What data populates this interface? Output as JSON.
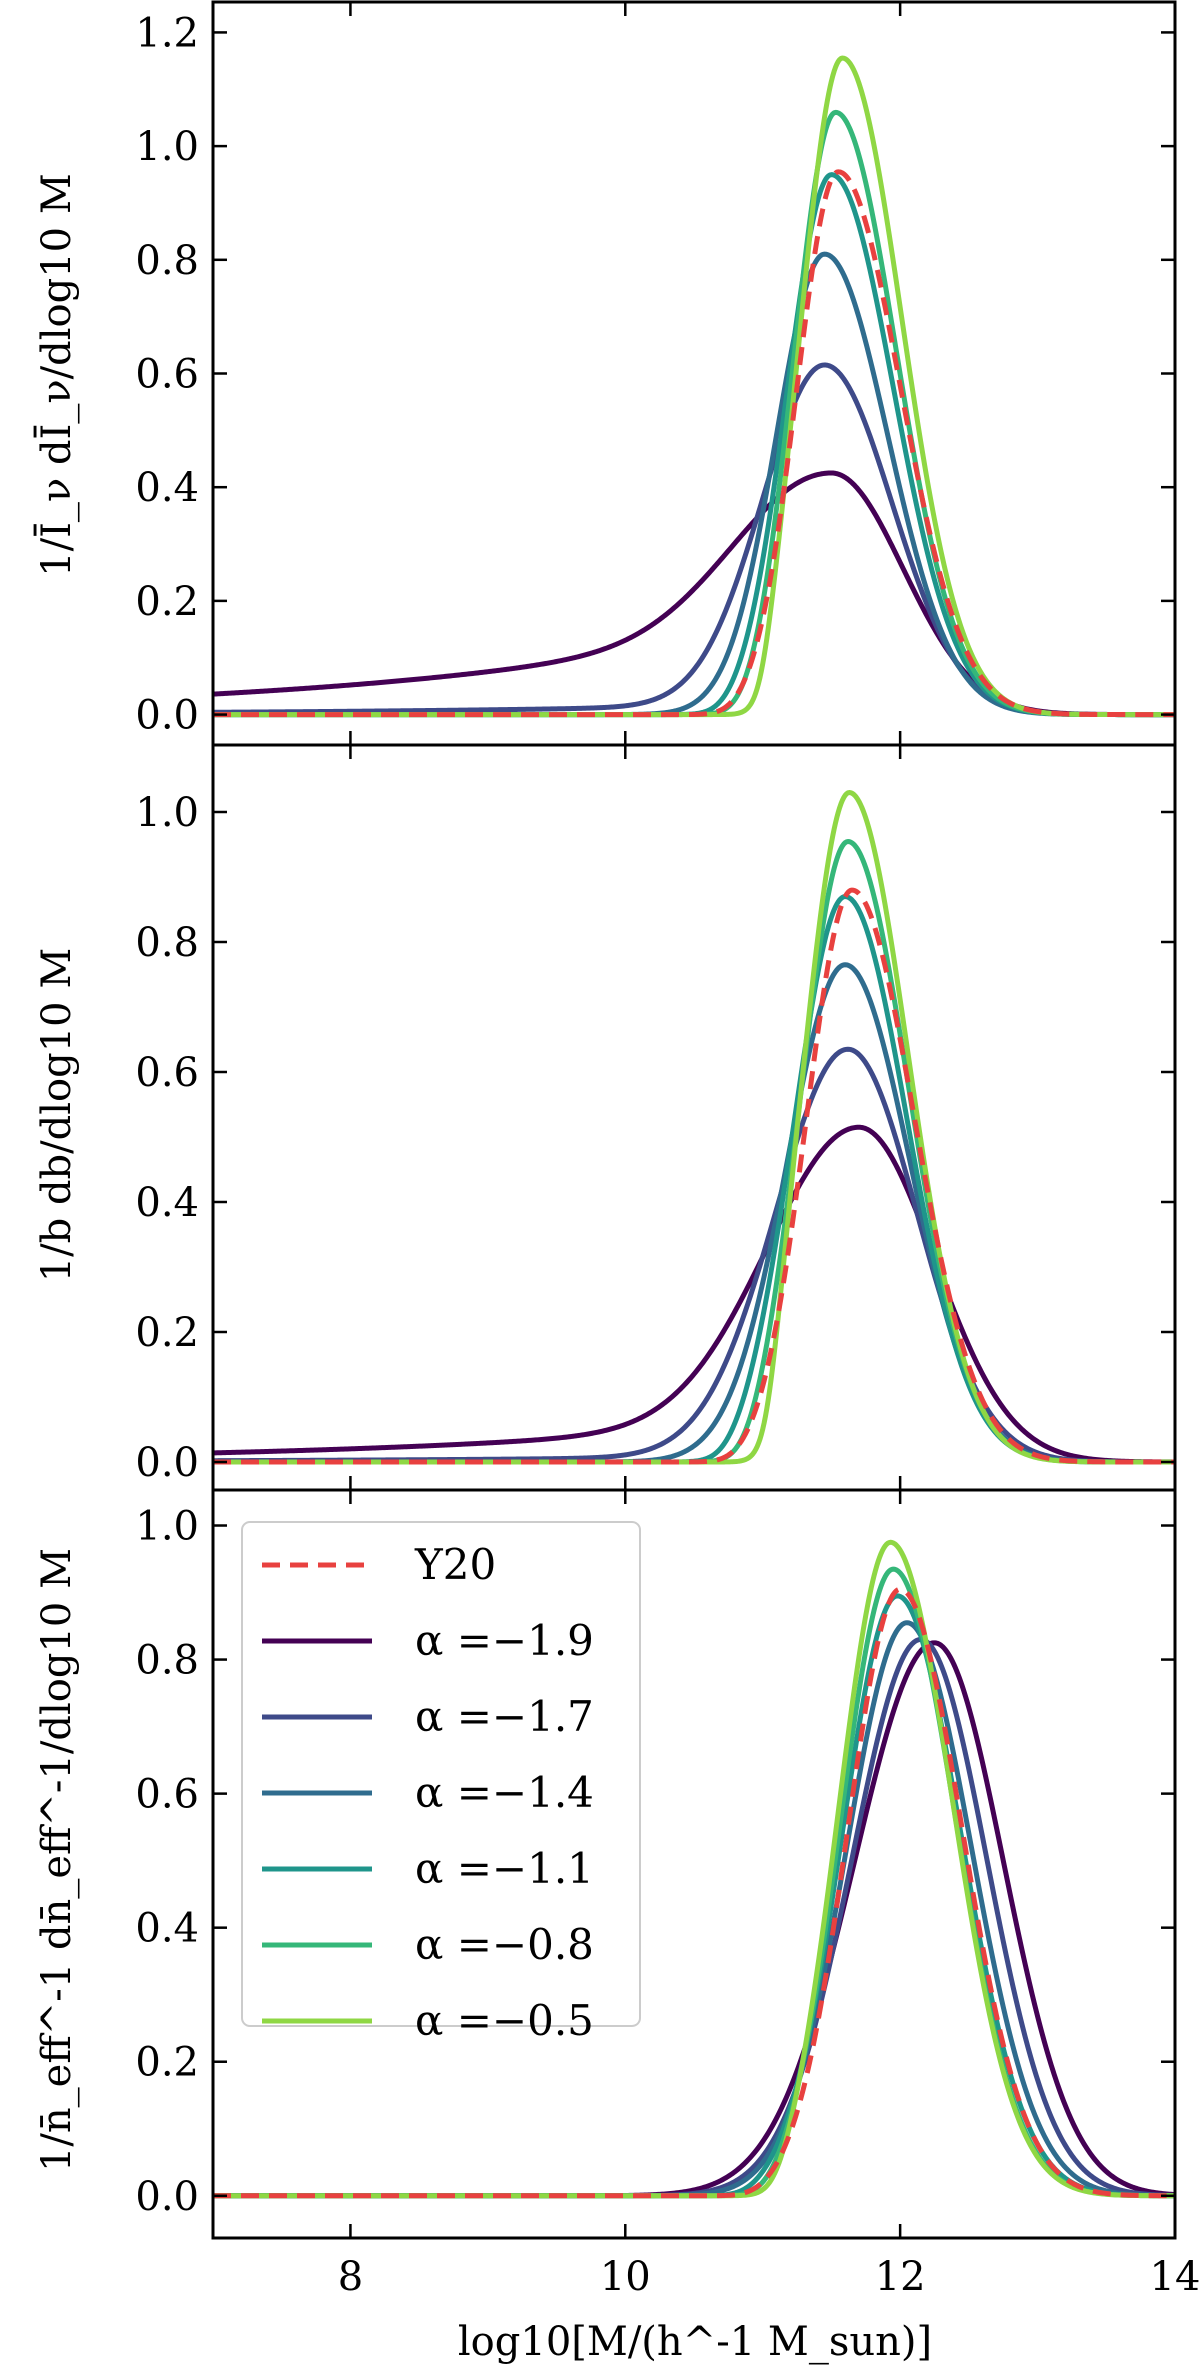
{
  "chart_data": {
    "type": "line",
    "figure": "three stacked panels sharing the x axis",
    "xlabel": "log10[M/(h^-1 M_sun)]",
    "xlim": [
      7,
      14
    ],
    "xticks": [
      "8",
      "10",
      "12",
      "14"
    ],
    "legend": {
      "placement": "upper-left of bottom panel",
      "entries": [
        "Y20",
        "α =−1.9",
        "α =−1.7",
        "α =−1.4",
        "α =−1.1",
        "α =−0.8",
        "α =−0.5"
      ]
    },
    "series_styles": [
      {
        "name": "Y20",
        "color": "#e8413f",
        "dash": true
      },
      {
        "name": "α =−1.9",
        "color": "#440154",
        "dash": false
      },
      {
        "name": "α =−1.7",
        "color": "#3e4a89",
        "dash": false
      },
      {
        "name": "α =−1.4",
        "color": "#2f6c8e",
        "dash": false
      },
      {
        "name": "α =−1.1",
        "color": "#1f958b",
        "dash": false
      },
      {
        "name": "α =−0.8",
        "color": "#35b779",
        "dash": false
      },
      {
        "name": "α =−0.5",
        "color": "#8fd744",
        "dash": false
      }
    ],
    "panels": [
      {
        "ylabel": "1/Ī_ν dĪ_ν/dlog10 M",
        "ylim": [
          -0.05,
          1.25
        ],
        "yticks": [
          "0.0",
          "0.2",
          "0.4",
          "0.6",
          "0.8",
          "1.0",
          "1.2"
        ],
        "curves": [
          {
            "name": "Y20",
            "peak": 0.955,
            "mu": 11.55,
            "sl": 0.3,
            "sr": 0.45,
            "tail": 0.0,
            "cut": 10.7,
            "cutw": 0.1
          },
          {
            "name": "α =−1.9",
            "peak": 0.425,
            "mu": 11.5,
            "sl": 0.65,
            "sr": 0.52,
            "tail": 0.036,
            "cut": 6.0,
            "cutw": 0.1
          },
          {
            "name": "α =−1.7",
            "peak": 0.615,
            "mu": 11.45,
            "sl": 0.45,
            "sr": 0.49,
            "tail": 0.004,
            "cut": 6.0,
            "cutw": 0.1
          },
          {
            "name": "α =−1.4",
            "peak": 0.81,
            "mu": 11.45,
            "sl": 0.35,
            "sr": 0.46,
            "tail": 0.0,
            "cut": 6.0,
            "cutw": 0.1
          },
          {
            "name": "α =−1.1",
            "peak": 0.95,
            "mu": 11.5,
            "sl": 0.32,
            "sr": 0.45,
            "tail": 0.0,
            "cut": 10.65,
            "cutw": 0.1
          },
          {
            "name": "α =−0.8",
            "peak": 1.06,
            "mu": 11.53,
            "sl": 0.3,
            "sr": 0.44,
            "tail": 0.0,
            "cut": 10.8,
            "cutw": 0.1
          },
          {
            "name": "α =−0.5",
            "peak": 1.155,
            "mu": 11.58,
            "sl": 0.3,
            "sr": 0.43,
            "tail": 0.0,
            "cut": 11.0,
            "cutw": 0.06
          }
        ]
      },
      {
        "ylabel": "1/b db/dlog10 M",
        "ylim": [
          -0.04,
          1.1
        ],
        "yticks": [
          "0.0",
          "0.2",
          "0.4",
          "0.6",
          "0.8",
          "1.0"
        ],
        "curves": [
          {
            "name": "Y20",
            "peak": 0.88,
            "mu": 11.65,
            "sl": 0.33,
            "sr": 0.45,
            "tail": 0.0,
            "cut": 10.75,
            "cutw": 0.1
          },
          {
            "name": "α =−1.9",
            "peak": 0.515,
            "mu": 11.7,
            "sl": 0.65,
            "sr": 0.55,
            "tail": 0.014,
            "cut": 6.0,
            "cutw": 0.1
          },
          {
            "name": "α =−1.7",
            "peak": 0.635,
            "mu": 11.62,
            "sl": 0.52,
            "sr": 0.5,
            "tail": 0.002,
            "cut": 6.0,
            "cutw": 0.1
          },
          {
            "name": "α =−1.4",
            "peak": 0.765,
            "mu": 11.6,
            "sl": 0.42,
            "sr": 0.47,
            "tail": 0.0,
            "cut": 6.0,
            "cutw": 0.1
          },
          {
            "name": "α =−1.1",
            "peak": 0.87,
            "mu": 11.6,
            "sl": 0.37,
            "sr": 0.45,
            "tail": 0.0,
            "cut": 10.7,
            "cutw": 0.1
          },
          {
            "name": "α =−0.8",
            "peak": 0.955,
            "mu": 11.62,
            "sl": 0.34,
            "sr": 0.44,
            "tail": 0.0,
            "cut": 10.85,
            "cutw": 0.1
          },
          {
            "name": "α =−0.5",
            "peak": 1.03,
            "mu": 11.63,
            "sl": 0.33,
            "sr": 0.43,
            "tail": 0.0,
            "cut": 11.05,
            "cutw": 0.06
          }
        ]
      },
      {
        "ylabel": "1/n̄_eff^-1 dn̄_eff^-1/dlog10 M",
        "ylim": [
          -0.06,
          1.05
        ],
        "yticks": [
          "0.0",
          "0.2",
          "0.4",
          "0.6",
          "0.8",
          "1.0"
        ],
        "curves": [
          {
            "name": "Y20",
            "peak": 0.905,
            "mu": 12.0,
            "sl": 0.38,
            "sr": 0.45,
            "tail": 0.0,
            "cut": 10.9,
            "cutw": 0.1
          },
          {
            "name": "α =−1.9",
            "peak": 0.825,
            "mu": 12.25,
            "sl": 0.58,
            "sr": 0.5,
            "tail": 0.0,
            "cut": 6.0,
            "cutw": 0.1
          },
          {
            "name": "α =−1.7",
            "peak": 0.83,
            "mu": 12.15,
            "sl": 0.5,
            "sr": 0.48,
            "tail": 0.0,
            "cut": 6.0,
            "cutw": 0.1
          },
          {
            "name": "α =−1.4",
            "peak": 0.855,
            "mu": 12.05,
            "sl": 0.44,
            "sr": 0.47,
            "tail": 0.0,
            "cut": 6.0,
            "cutw": 0.1
          },
          {
            "name": "α =−1.1",
            "peak": 0.895,
            "mu": 11.98,
            "sl": 0.4,
            "sr": 0.46,
            "tail": 0.0,
            "cut": 10.85,
            "cutw": 0.1
          },
          {
            "name": "α =−0.8",
            "peak": 0.935,
            "mu": 11.95,
            "sl": 0.38,
            "sr": 0.45,
            "tail": 0.0,
            "cut": 11.0,
            "cutw": 0.1
          },
          {
            "name": "α =−0.5",
            "peak": 0.975,
            "mu": 11.93,
            "sl": 0.37,
            "sr": 0.45,
            "tail": 0.0,
            "cut": 11.1,
            "cutw": 0.08
          }
        ]
      }
    ]
  }
}
